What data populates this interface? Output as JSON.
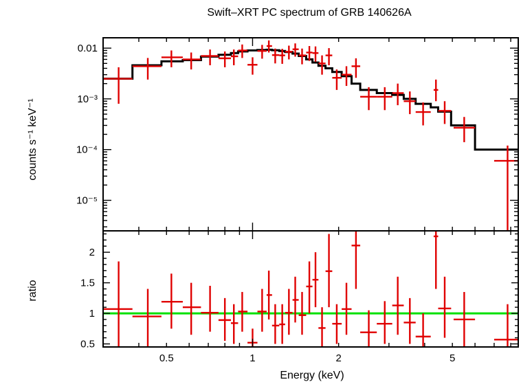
{
  "chart_data": [
    {
      "type": "scatter",
      "title": "Swift–XRT PC spectrum of GRB 140626A",
      "xlabel": "",
      "ylabel": "counts s⁻¹ keV⁻¹",
      "xscale": "log",
      "yscale": "log",
      "xlim": [
        0.3,
        8.5
      ],
      "ylim": [
        2.5e-06,
        0.016
      ],
      "y_tick_labels": [
        "0.01",
        "10⁻³",
        "10⁻⁴",
        "10⁻⁵"
      ],
      "y_tick_values": [
        0.01,
        0.001,
        0.0001,
        1e-05
      ],
      "series": [
        {
          "name": "",
          "kind": "data",
          "color": "#e00000",
          "points": [
            {
              "x": 0.34,
              "xlo": 0.3,
              "xhi": 0.38,
              "y": 0.0025,
              "ylo": 0.0008,
              "yhi": 0.0042
            },
            {
              "x": 0.43,
              "xlo": 0.38,
              "xhi": 0.48,
              "y": 0.0044,
              "ylo": 0.0024,
              "yhi": 0.0064
            },
            {
              "x": 0.52,
              "xlo": 0.48,
              "xhi": 0.57,
              "y": 0.0066,
              "ylo": 0.0042,
              "yhi": 0.009
            },
            {
              "x": 0.61,
              "xlo": 0.57,
              "xhi": 0.66,
              "y": 0.006,
              "ylo": 0.0038,
              "yhi": 0.0082
            },
            {
              "x": 0.71,
              "xlo": 0.66,
              "xhi": 0.76,
              "y": 0.007,
              "ylo": 0.0046,
              "yhi": 0.0094
            },
            {
              "x": 0.8,
              "xlo": 0.76,
              "xhi": 0.84,
              "y": 0.0063,
              "ylo": 0.0042,
              "yhi": 0.0086
            },
            {
              "x": 0.86,
              "xlo": 0.84,
              "xhi": 0.89,
              "y": 0.0069,
              "ylo": 0.0046,
              "yhi": 0.0094
            },
            {
              "x": 0.92,
              "xlo": 0.89,
              "xhi": 0.96,
              "y": 0.009,
              "ylo": 0.0064,
              "yhi": 0.0118
            },
            {
              "x": 1.0,
              "xlo": 0.96,
              "xhi": 1.04,
              "y": 0.0047,
              "ylo": 0.003,
              "yhi": 0.0066
            },
            {
              "x": 1.08,
              "xlo": 1.04,
              "xhi": 1.12,
              "y": 0.0088,
              "ylo": 0.0062,
              "yhi": 0.0116
            },
            {
              "x": 1.14,
              "xlo": 1.12,
              "xhi": 1.17,
              "y": 0.011,
              "ylo": 0.0082,
              "yhi": 0.0142
            },
            {
              "x": 1.2,
              "xlo": 1.17,
              "xhi": 1.24,
              "y": 0.0073,
              "ylo": 0.005,
              "yhi": 0.0098
            },
            {
              "x": 1.27,
              "xlo": 1.24,
              "xhi": 1.3,
              "y": 0.0072,
              "ylo": 0.0049,
              "yhi": 0.0097
            },
            {
              "x": 1.34,
              "xlo": 1.3,
              "xhi": 1.38,
              "y": 0.0085,
              "ylo": 0.006,
              "yhi": 0.0112
            },
            {
              "x": 1.41,
              "xlo": 1.38,
              "xhi": 1.45,
              "y": 0.0095,
              "ylo": 0.0068,
              "yhi": 0.0124
            },
            {
              "x": 1.49,
              "xlo": 1.45,
              "xhi": 1.54,
              "y": 0.0072,
              "ylo": 0.0048,
              "yhi": 0.0098
            },
            {
              "x": 1.58,
              "xlo": 1.54,
              "xhi": 1.62,
              "y": 0.0082,
              "ylo": 0.0056,
              "yhi": 0.011
            },
            {
              "x": 1.66,
              "xlo": 1.62,
              "xhi": 1.7,
              "y": 0.008,
              "ylo": 0.0054,
              "yhi": 0.0108
            },
            {
              "x": 1.75,
              "xlo": 1.7,
              "xhi": 1.8,
              "y": 0.005,
              "ylo": 0.003,
              "yhi": 0.0072
            },
            {
              "x": 1.85,
              "xlo": 1.8,
              "xhi": 1.9,
              "y": 0.0072,
              "ylo": 0.0046,
              "yhi": 0.01
            },
            {
              "x": 1.97,
              "xlo": 1.9,
              "xhi": 2.05,
              "y": 0.0026,
              "ylo": 0.0015,
              "yhi": 0.0038
            },
            {
              "x": 2.13,
              "xlo": 2.05,
              "xhi": 2.22,
              "y": 0.003,
              "ylo": 0.0018,
              "yhi": 0.0044
            },
            {
              "x": 2.3,
              "xlo": 2.22,
              "xhi": 2.38,
              "y": 0.0044,
              "ylo": 0.0026,
              "yhi": 0.0063
            },
            {
              "x": 2.55,
              "xlo": 2.38,
              "xhi": 2.72,
              "y": 0.0011,
              "ylo": 0.0006,
              "yhi": 0.0017
            },
            {
              "x": 2.9,
              "xlo": 2.72,
              "xhi": 3.08,
              "y": 0.0011,
              "ylo": 0.0006,
              "yhi": 0.0017
            },
            {
              "x": 3.22,
              "xlo": 3.08,
              "xhi": 3.38,
              "y": 0.0013,
              "ylo": 0.00075,
              "yhi": 0.002
            },
            {
              "x": 3.55,
              "xlo": 3.38,
              "xhi": 3.72,
              "y": 0.0009,
              "ylo": 0.0005,
              "yhi": 0.0014
            },
            {
              "x": 3.95,
              "xlo": 3.72,
              "xhi": 4.2,
              "y": 0.00055,
              "ylo": 0.0003,
              "yhi": 0.00085
            },
            {
              "x": 4.38,
              "xlo": 4.3,
              "xhi": 4.46,
              "y": 0.0015,
              "ylo": 0.0009,
              "yhi": 0.0024
            },
            {
              "x": 4.7,
              "xlo": 4.46,
              "xhi": 4.95,
              "y": 0.00058,
              "ylo": 0.00032,
              "yhi": 0.0009
            },
            {
              "x": 5.5,
              "xlo": 5.05,
              "xhi": 6.0,
              "y": 0.00027,
              "ylo": 0.00014,
              "yhi": 0.00044
            },
            {
              "x": 7.8,
              "xlo": 7.0,
              "xhi": 8.5,
              "y": 6e-05,
              "ylo": 2.5e-06,
              "yhi": 0.00012
            }
          ]
        },
        {
          "name": "",
          "kind": "model",
          "color": "#000000",
          "steps": [
            {
              "xlo": 0.3,
              "xhi": 0.38,
              "y": 0.0025
            },
            {
              "xlo": 0.38,
              "xhi": 0.48,
              "y": 0.0046
            },
            {
              "xlo": 0.48,
              "xhi": 0.57,
              "y": 0.0055
            },
            {
              "xlo": 0.57,
              "xhi": 0.66,
              "y": 0.0058
            },
            {
              "xlo": 0.66,
              "xhi": 0.76,
              "y": 0.0068
            },
            {
              "xlo": 0.76,
              "xhi": 0.84,
              "y": 0.0074
            },
            {
              "xlo": 0.84,
              "xhi": 0.89,
              "y": 0.008
            },
            {
              "xlo": 0.89,
              "xhi": 0.96,
              "y": 0.0086
            },
            {
              "xlo": 0.96,
              "xhi": 1.04,
              "y": 0.009
            },
            {
              "xlo": 1.04,
              "xhi": 1.12,
              "y": 0.0092
            },
            {
              "xlo": 1.12,
              "xhi": 1.17,
              "y": 0.0093
            },
            {
              "xlo": 1.17,
              "xhi": 1.24,
              "y": 0.0091
            },
            {
              "xlo": 1.24,
              "xhi": 1.3,
              "y": 0.0088
            },
            {
              "xlo": 1.3,
              "xhi": 1.38,
              "y": 0.0084
            },
            {
              "xlo": 1.38,
              "xhi": 1.45,
              "y": 0.0078
            },
            {
              "xlo": 1.45,
              "xhi": 1.54,
              "y": 0.007
            },
            {
              "xlo": 1.54,
              "xhi": 1.62,
              "y": 0.006
            },
            {
              "xlo": 1.62,
              "xhi": 1.7,
              "y": 0.0052
            },
            {
              "xlo": 1.7,
              "xhi": 1.8,
              "y": 0.0045
            },
            {
              "xlo": 1.8,
              "xhi": 1.9,
              "y": 0.004
            },
            {
              "xlo": 1.9,
              "xhi": 2.05,
              "y": 0.0034
            },
            {
              "xlo": 2.05,
              "xhi": 2.22,
              "y": 0.0028
            },
            {
              "xlo": 2.22,
              "xhi": 2.38,
              "y": 0.002
            },
            {
              "xlo": 2.38,
              "xhi": 2.72,
              "y": 0.0015
            },
            {
              "xlo": 2.72,
              "xhi": 3.08,
              "y": 0.0013
            },
            {
              "xlo": 3.08,
              "xhi": 3.38,
              "y": 0.0012
            },
            {
              "xlo": 3.38,
              "xhi": 3.72,
              "y": 0.001
            },
            {
              "xlo": 3.72,
              "xhi": 4.2,
              "y": 0.0008
            },
            {
              "xlo": 4.2,
              "xhi": 4.46,
              "y": 0.00068
            },
            {
              "xlo": 4.46,
              "xhi": 4.95,
              "y": 0.00056
            },
            {
              "xlo": 4.95,
              "xhi": 6.0,
              "y": 0.0003
            },
            {
              "xlo": 6.0,
              "xhi": 7.0,
              "y": 0.0001
            },
            {
              "xlo": 7.0,
              "xhi": 8.5,
              "y": 0.0001
            }
          ]
        }
      ]
    },
    {
      "type": "scatter",
      "title": "",
      "xlabel": "Energy (keV)",
      "ylabel": "ratio",
      "xscale": "log",
      "yscale": "linear",
      "xlim": [
        0.3,
        8.5
      ],
      "ylim": [
        0.45,
        2.35
      ],
      "x_tick_labels": [
        "0.5",
        "1",
        "2",
        "5"
      ],
      "x_tick_values": [
        0.5,
        1,
        2,
        5
      ],
      "y_tick_labels": [
        "0.5",
        "1",
        "1.5",
        "2"
      ],
      "y_tick_values": [
        0.5,
        1,
        1.5,
        2
      ],
      "reference_line": {
        "y": 1,
        "color": "#00e000"
      },
      "series": [
        {
          "name": "",
          "kind": "data",
          "color": "#e00000",
          "points": [
            {
              "x": 0.34,
              "xlo": 0.3,
              "xhi": 0.38,
              "y": 1.07,
              "ylo": 0.45,
              "yhi": 1.85
            },
            {
              "x": 0.43,
              "xlo": 0.38,
              "xhi": 0.48,
              "y": 0.95,
              "ylo": 0.45,
              "yhi": 1.4
            },
            {
              "x": 0.52,
              "xlo": 0.48,
              "xhi": 0.57,
              "y": 1.19,
              "ylo": 0.75,
              "yhi": 1.65
            },
            {
              "x": 0.61,
              "xlo": 0.57,
              "xhi": 0.66,
              "y": 1.1,
              "ylo": 0.65,
              "yhi": 1.5
            },
            {
              "x": 0.71,
              "xlo": 0.66,
              "xhi": 0.76,
              "y": 1.01,
              "ylo": 0.7,
              "yhi": 1.45
            },
            {
              "x": 0.8,
              "xlo": 0.76,
              "xhi": 0.84,
              "y": 0.89,
              "ylo": 0.55,
              "yhi": 1.25
            },
            {
              "x": 0.86,
              "xlo": 0.84,
              "xhi": 0.89,
              "y": 0.84,
              "ylo": 0.5,
              "yhi": 1.15
            },
            {
              "x": 0.92,
              "xlo": 0.89,
              "xhi": 0.96,
              "y": 1.03,
              "ylo": 0.7,
              "yhi": 1.35
            },
            {
              "x": 1.0,
              "xlo": 0.96,
              "xhi": 1.04,
              "y": 0.52,
              "ylo": 0.45,
              "yhi": 0.75
            },
            {
              "x": 1.08,
              "xlo": 1.04,
              "xhi": 1.12,
              "y": 1.03,
              "ylo": 0.7,
              "yhi": 1.4
            },
            {
              "x": 1.14,
              "xlo": 1.12,
              "xhi": 1.17,
              "y": 1.3,
              "ylo": 0.9,
              "yhi": 1.7
            },
            {
              "x": 1.2,
              "xlo": 1.17,
              "xhi": 1.24,
              "y": 0.8,
              "ylo": 0.5,
              "yhi": 1.15
            },
            {
              "x": 1.27,
              "xlo": 1.24,
              "xhi": 1.3,
              "y": 0.82,
              "ylo": 0.5,
              "yhi": 1.15
            },
            {
              "x": 1.34,
              "xlo": 1.3,
              "xhi": 1.38,
              "y": 1.01,
              "ylo": 0.65,
              "yhi": 1.4
            },
            {
              "x": 1.41,
              "xlo": 1.38,
              "xhi": 1.45,
              "y": 1.22,
              "ylo": 0.85,
              "yhi": 1.6
            },
            {
              "x": 1.49,
              "xlo": 1.45,
              "xhi": 1.54,
              "y": 0.97,
              "ylo": 0.65,
              "yhi": 1.35
            },
            {
              "x": 1.58,
              "xlo": 1.54,
              "xhi": 1.62,
              "y": 1.44,
              "ylo": 1.0,
              "yhi": 1.85
            },
            {
              "x": 1.66,
              "xlo": 1.62,
              "xhi": 1.7,
              "y": 1.55,
              "ylo": 1.1,
              "yhi": 2.0
            },
            {
              "x": 1.75,
              "xlo": 1.7,
              "xhi": 1.8,
              "y": 0.76,
              "ylo": 0.45,
              "yhi": 1.1
            },
            {
              "x": 1.85,
              "xlo": 1.8,
              "xhi": 1.9,
              "y": 1.69,
              "ylo": 1.1,
              "yhi": 2.3
            },
            {
              "x": 1.97,
              "xlo": 1.9,
              "xhi": 2.05,
              "y": 0.83,
              "ylo": 0.5,
              "yhi": 1.15
            },
            {
              "x": 2.13,
              "xlo": 2.05,
              "xhi": 2.22,
              "y": 1.07,
              "ylo": 0.65,
              "yhi": 1.5
            },
            {
              "x": 2.3,
              "xlo": 2.22,
              "xhi": 2.38,
              "y": 2.11,
              "ylo": 1.4,
              "yhi": 2.35
            },
            {
              "x": 2.55,
              "xlo": 2.38,
              "xhi": 2.72,
              "y": 0.69,
              "ylo": 0.45,
              "yhi": 1.05
            },
            {
              "x": 2.9,
              "xlo": 2.72,
              "xhi": 3.08,
              "y": 0.83,
              "ylo": 0.5,
              "yhi": 1.2
            },
            {
              "x": 3.22,
              "xlo": 3.08,
              "xhi": 3.38,
              "y": 1.13,
              "ylo": 0.65,
              "yhi": 1.6
            },
            {
              "x": 3.55,
              "xlo": 3.38,
              "xhi": 3.72,
              "y": 0.85,
              "ylo": 0.5,
              "yhi": 1.25
            },
            {
              "x": 3.95,
              "xlo": 3.72,
              "xhi": 4.2,
              "y": 0.62,
              "ylo": 0.45,
              "yhi": 1.0
            },
            {
              "x": 4.38,
              "xlo": 4.3,
              "xhi": 4.46,
              "y": 2.26,
              "ylo": 1.4,
              "yhi": 2.35
            },
            {
              "x": 4.7,
              "xlo": 4.46,
              "xhi": 4.95,
              "y": 1.08,
              "ylo": 0.6,
              "yhi": 1.6
            },
            {
              "x": 5.5,
              "xlo": 5.05,
              "xhi": 6.0,
              "y": 0.9,
              "ylo": 0.45,
              "yhi": 1.35
            },
            {
              "x": 7.8,
              "xlo": 7.0,
              "xhi": 8.5,
              "y": 0.57,
              "ylo": 0.45,
              "yhi": 1.15
            }
          ]
        }
      ]
    }
  ]
}
